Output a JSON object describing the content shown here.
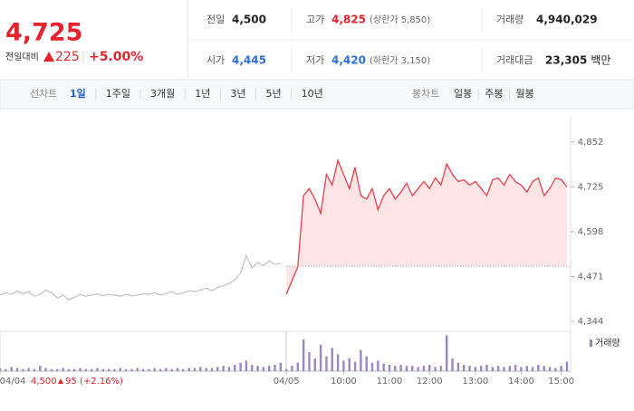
{
  "quote": {
    "price": "4,725",
    "change_label": "전일대비",
    "change": "225",
    "change_pct": "+5.00%"
  },
  "stats": [
    {
      "label": "전일",
      "value": "4,500"
    },
    {
      "label": "고가",
      "value": "4,825",
      "note": "(상한가 5,850)"
    },
    {
      "label": "거래량",
      "value": "4,940,029"
    },
    {
      "label": "시가",
      "value": "4,445"
    },
    {
      "label": "저가",
      "value": "4,420",
      "note": "(하한가 3,150)"
    },
    {
      "label": "거래대금",
      "value": "23,305",
      "note": "백만"
    }
  ],
  "tabs": {
    "line_label": "선차트",
    "periods": [
      "1일",
      "1주일",
      "3개월",
      "1년",
      "3년",
      "5년",
      "10년"
    ],
    "active_period": 0,
    "candle_label": "봉차트",
    "candles": [
      "일봉",
      "주봉",
      "월봉"
    ]
  },
  "prev_day": {
    "close": "4,500",
    "change": "95",
    "change_pct": "(+2.16%)"
  },
  "chart_data": {
    "type": "line",
    "xlim": [
      0,
      99
    ],
    "xticks": [
      {
        "value": 0,
        "label": "04/04"
      },
      {
        "value": 50,
        "label": "04/05"
      },
      {
        "value": 60,
        "label": "10:00"
      },
      {
        "value": 68,
        "label": "11:00"
      },
      {
        "value": 75,
        "label": "12:00"
      },
      {
        "value": 83,
        "label": "13:00"
      },
      {
        "value": 91,
        "label": "14:00"
      },
      {
        "value": 98,
        "label": "15:00"
      }
    ],
    "ylim": [
      4318,
      4926
    ],
    "yticks": [
      {
        "value": 4344,
        "label": "4,344"
      },
      {
        "value": 4471,
        "label": "4,471"
      },
      {
        "value": 4598,
        "label": "4,598"
      },
      {
        "value": 4725,
        "label": "4,725"
      },
      {
        "value": 4852,
        "label": "4,852"
      }
    ],
    "grid": false,
    "reference_line": 4500,
    "series": [
      {
        "name": "04/04",
        "color": "#c4c4c4",
        "values": [
          4418,
          4425,
          4420,
          4430,
          4422,
          4428,
          4415,
          4420,
          4432,
          4425,
          4410,
          4418,
          4405,
          4412,
          4420,
          4415,
          4418,
          4422,
          4416,
          4420,
          4418,
          4415,
          4420,
          4416,
          4418,
          4422,
          4420,
          4425,
          4418,
          4423,
          4428,
          4420,
          4425,
          4430,
          4428,
          4432,
          4438,
          4430,
          4440,
          4445,
          4450,
          4462,
          4480,
          4530,
          4495,
          4510,
          4502,
          4515,
          4505,
          4508,
          null,
          null,
          null,
          null,
          null,
          null,
          null,
          null,
          null,
          null,
          null,
          null,
          null,
          null,
          null,
          null,
          null,
          null,
          null,
          null,
          null,
          null,
          null,
          null,
          null,
          null,
          null,
          null,
          null,
          null,
          null,
          null,
          null,
          null,
          null,
          null,
          null,
          null,
          null,
          null,
          null,
          null,
          null,
          null,
          null,
          null,
          null,
          null,
          null,
          null
        ]
      },
      {
        "name": "04/05",
        "color": "#e8404a",
        "fill": "#fde4e5",
        "values": [
          null,
          null,
          null,
          null,
          null,
          null,
          null,
          null,
          null,
          null,
          null,
          null,
          null,
          null,
          null,
          null,
          null,
          null,
          null,
          null,
          null,
          null,
          null,
          null,
          null,
          null,
          null,
          null,
          null,
          null,
          null,
          null,
          null,
          null,
          null,
          null,
          null,
          null,
          null,
          null,
          null,
          null,
          null,
          null,
          null,
          null,
          null,
          null,
          null,
          null,
          4420,
          4460,
          4498,
          4700,
          4720,
          4690,
          4650,
          4760,
          4730,
          4800,
          4760,
          4720,
          4780,
          4700,
          4690,
          4720,
          4660,
          4700,
          4720,
          4690,
          4710,
          4735,
          4700,
          4720,
          4740,
          4720,
          4750,
          4730,
          4790,
          4760,
          4740,
          4745,
          4730,
          4740,
          4720,
          4700,
          4745,
          4750,
          4730,
          4760,
          4740,
          4730,
          4710,
          4740,
          4750,
          4700,
          4720,
          4750,
          4745,
          4725
        ]
      }
    ],
    "volume": {
      "label": "거래량",
      "color": "#9b86c4",
      "ylim": [
        0,
        36000
      ],
      "values": [
        3000,
        2000,
        4000,
        3000,
        2000,
        3000,
        2000,
        5000,
        3000,
        2000,
        2000,
        3000,
        2000,
        2000,
        3000,
        2000,
        2000,
        3000,
        2000,
        2000,
        2000,
        3000,
        2000,
        2000,
        3000,
        2000,
        2000,
        3000,
        2000,
        3000,
        2000,
        3000,
        2000,
        3000,
        3000,
        4000,
        3000,
        3000,
        4000,
        5000,
        4000,
        6000,
        8000,
        10000,
        6000,
        5000,
        4000,
        5000,
        6000,
        8000,
        2000,
        5000,
        8000,
        30000,
        18000,
        12000,
        25000,
        14000,
        22000,
        16000,
        10000,
        12000,
        9000,
        20000,
        14000,
        8000,
        10000,
        7000,
        6000,
        5000,
        6000,
        5000,
        5000,
        4000,
        5000,
        6000,
        4000,
        5000,
        34000,
        12000,
        8000,
        6000,
        5000,
        4000,
        5000,
        6000,
        4000,
        5000,
        4000,
        5000,
        6000,
        4000,
        5000,
        4000,
        6000,
        5000,
        4000,
        3000,
        5000,
        9000
      ]
    }
  }
}
